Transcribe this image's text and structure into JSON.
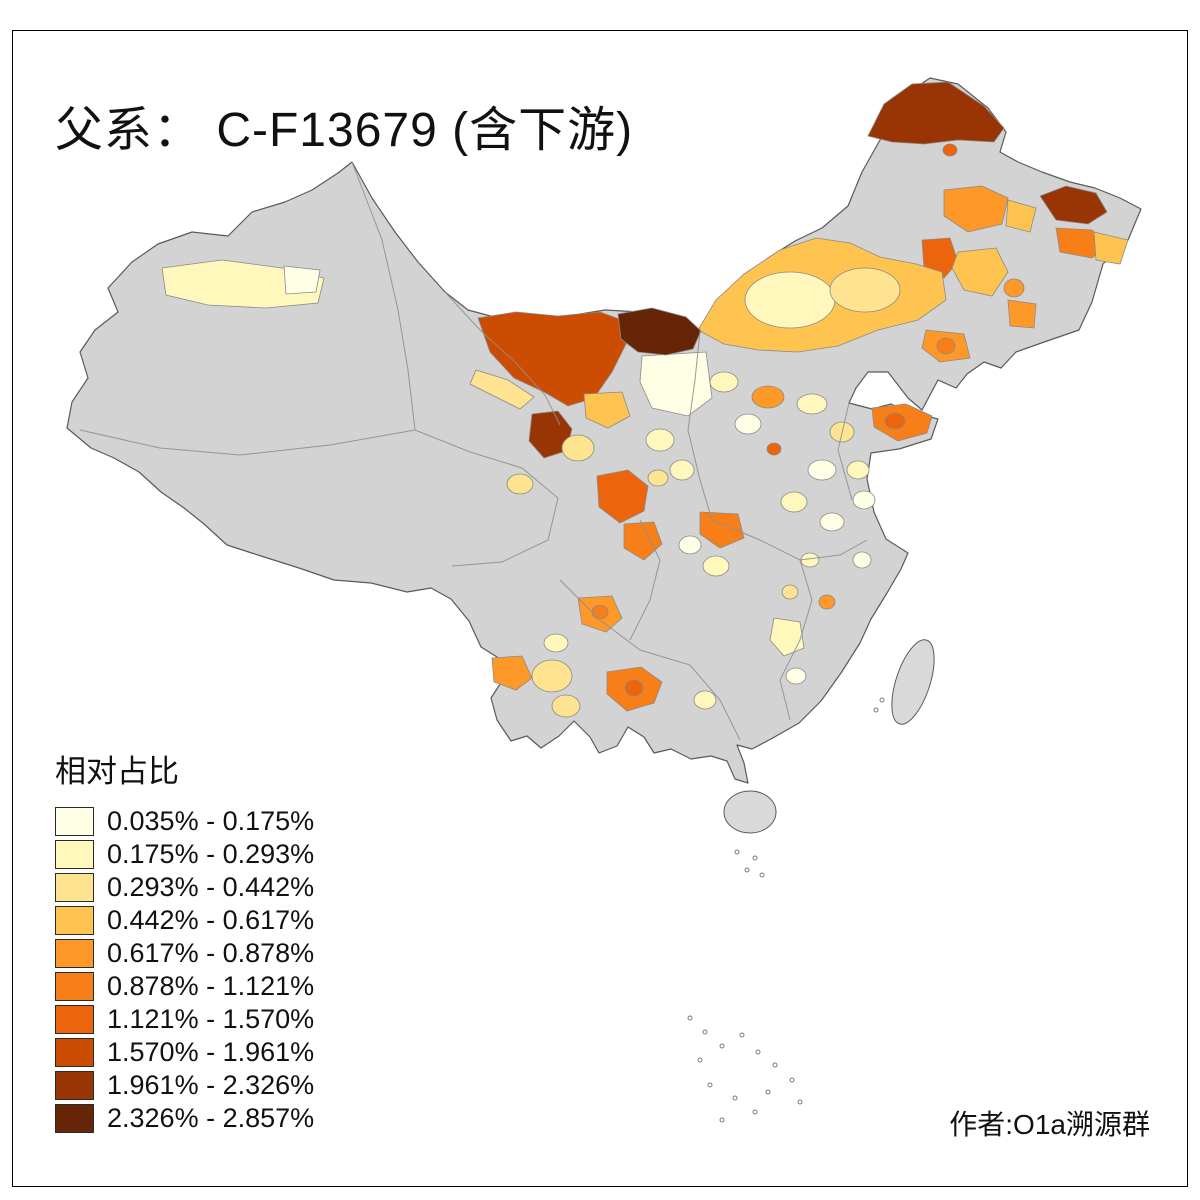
{
  "title": "父系：  C-F13679 (含下游)",
  "credit": "作者:O1a溯源群",
  "legend": {
    "title": "相对占比",
    "classes": [
      {
        "label": "0.035% - 0.175%",
        "color": "#FFFFE5"
      },
      {
        "label": "0.175% - 0.293%",
        "color": "#FFF7BC"
      },
      {
        "label": "0.293% - 0.442%",
        "color": "#FEE391"
      },
      {
        "label": "0.442% - 0.617%",
        "color": "#FEC44F"
      },
      {
        "label": "0.617% - 0.878%",
        "color": "#FE9929"
      },
      {
        "label": "0.878% - 1.121%",
        "color": "#F87F17"
      },
      {
        "label": "1.121% - 1.570%",
        "color": "#EC640C"
      },
      {
        "label": "1.570% - 1.961%",
        "color": "#CC4C02"
      },
      {
        "label": "1.961% - 2.326%",
        "color": "#993404"
      },
      {
        "label": "2.326% - 2.857%",
        "color": "#662506"
      }
    ]
  },
  "map": {
    "nodata_color": "#d3d3d3",
    "island_color": "#d9d9d9",
    "border_color": "#5a5a5a",
    "background": "#ffffff"
  }
}
